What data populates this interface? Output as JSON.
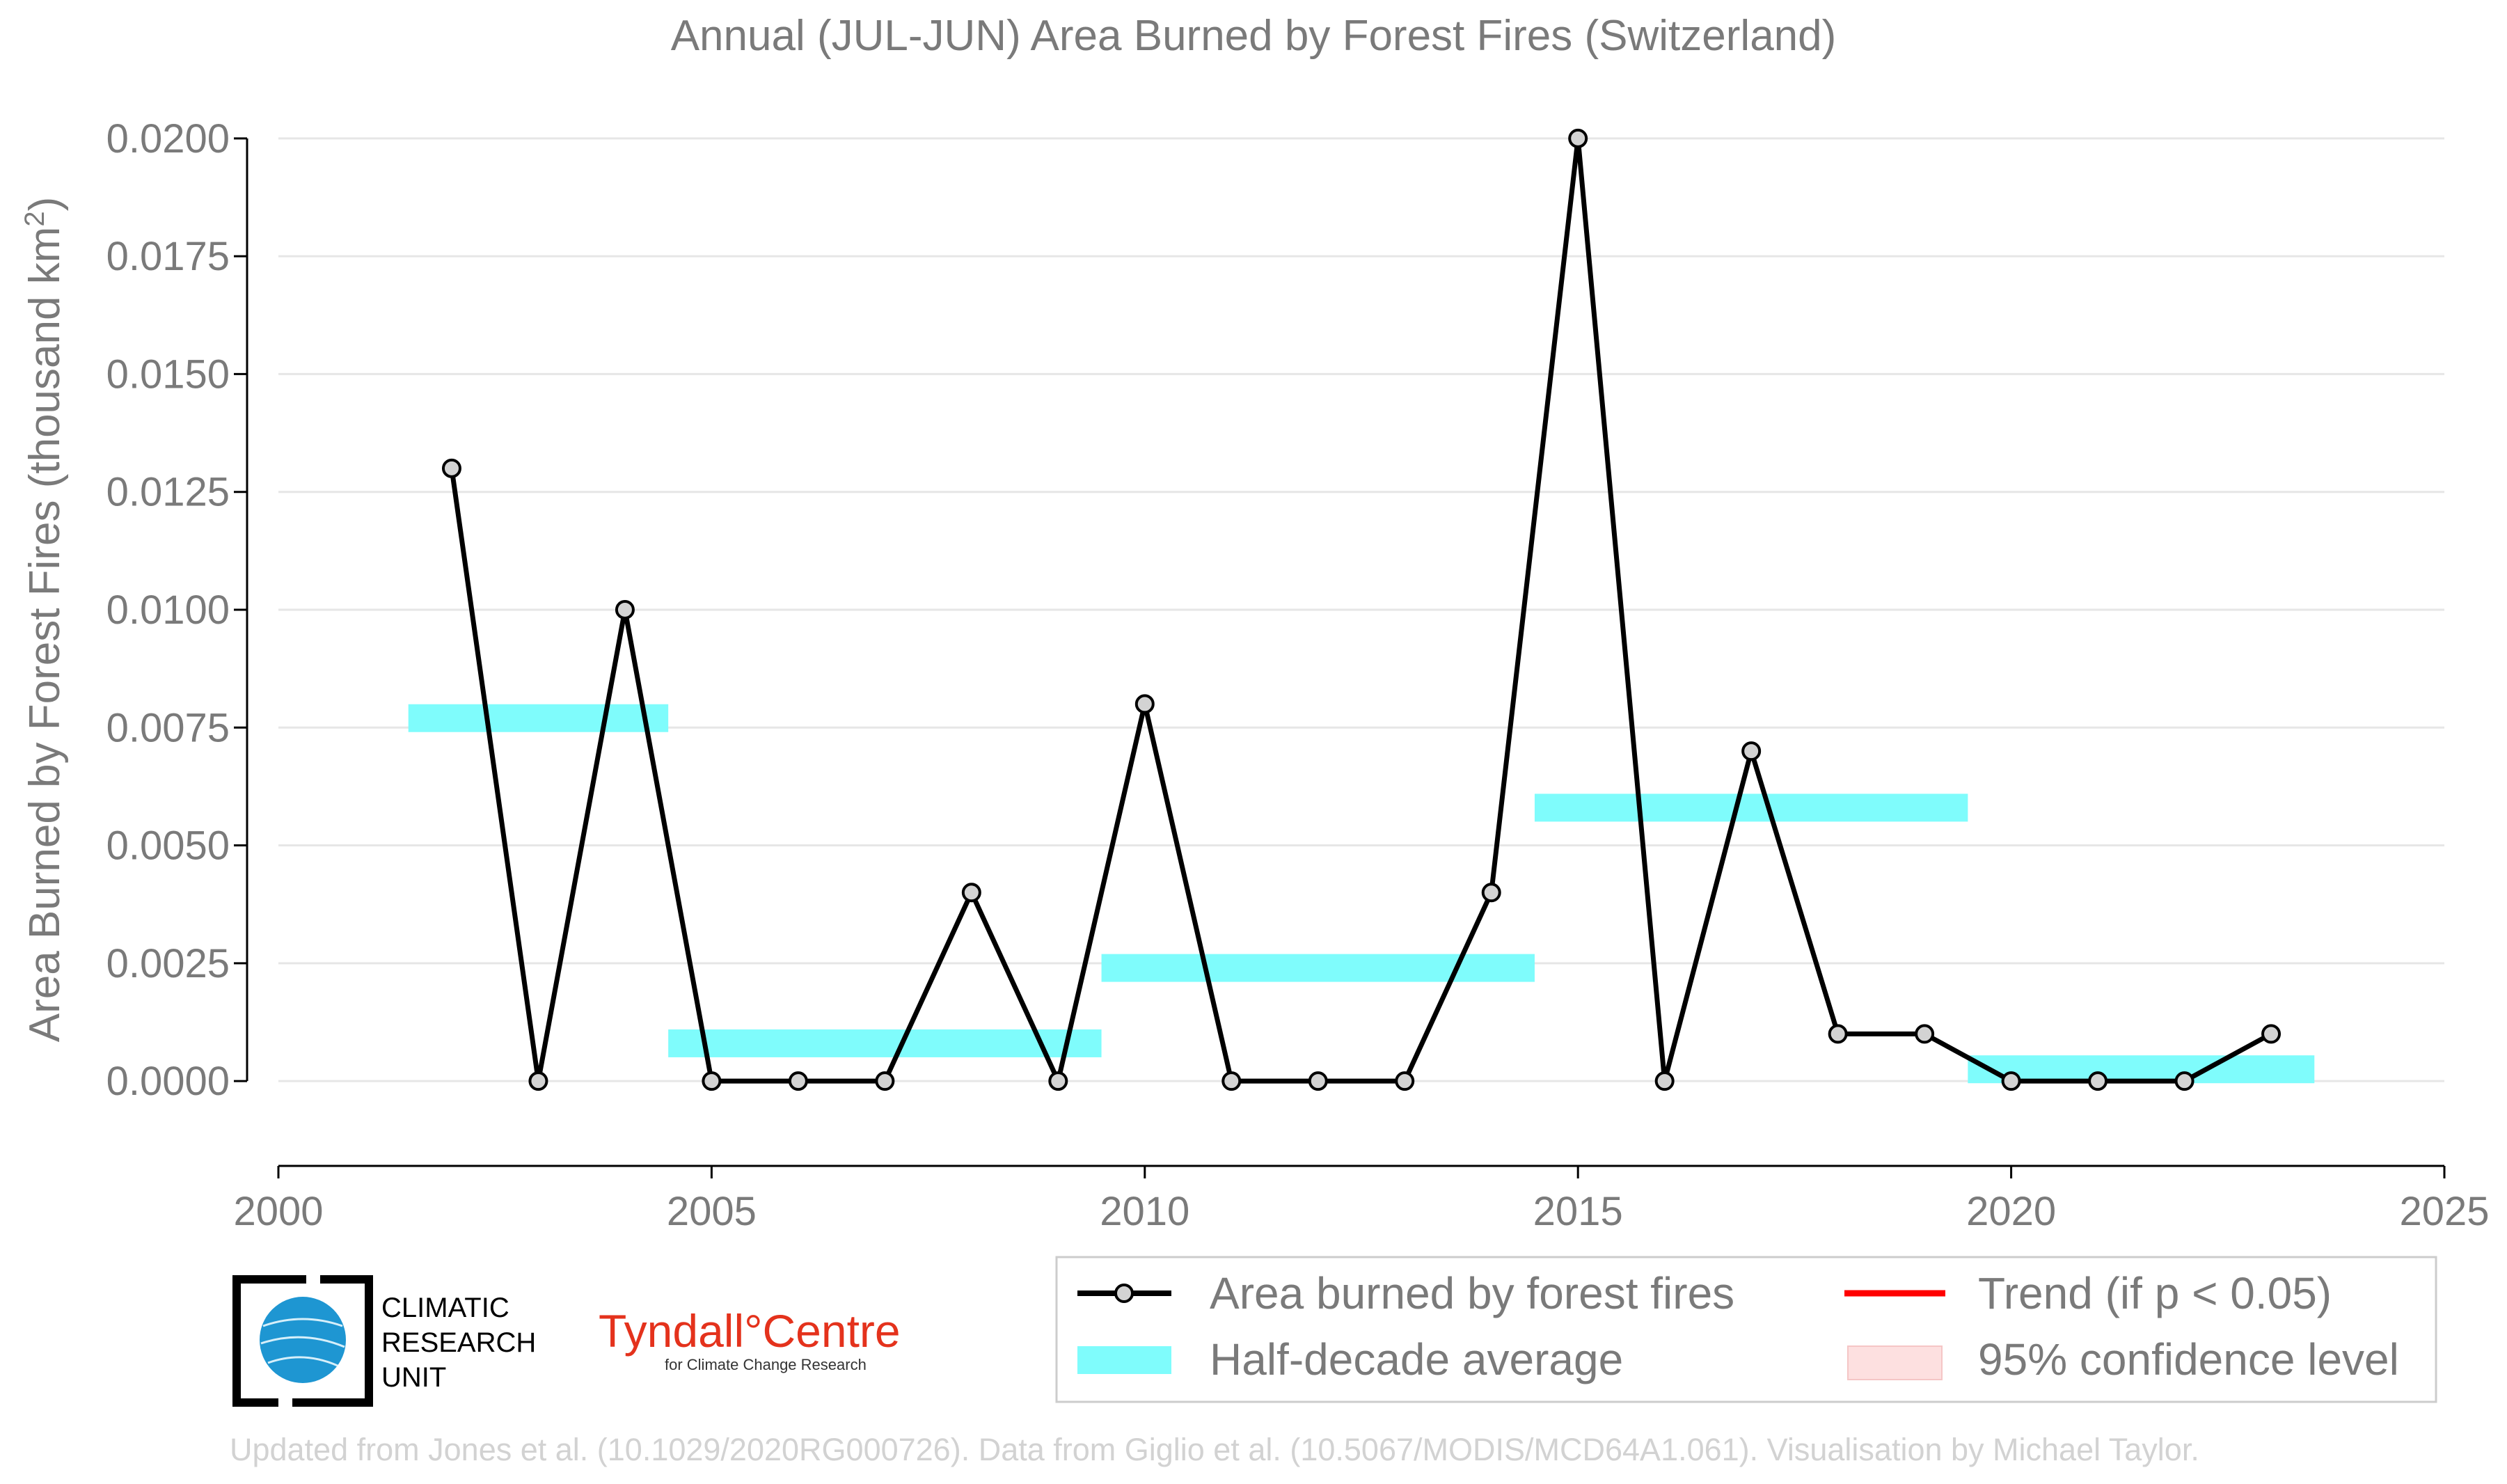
{
  "chart_data": {
    "type": "line",
    "title": "Annual (JUL-JUN) Area Burned by Forest Fires (Switzerland)",
    "ylabel": "Area Burned by Forest Fires (thousand km",
    "ylabel_superscript": "2",
    "ylabel_suffix": ")",
    "xlabel": "",
    "xlim": [
      2000,
      2025
    ],
    "ylim": [
      -0.0018,
      0.0205
    ],
    "x_ticks": [
      2000,
      2005,
      2010,
      2015,
      2020,
      2025
    ],
    "x_tick_labels": [
      "2000",
      "2005",
      "2010",
      "2015",
      "2020",
      "2025"
    ],
    "y_ticks": [
      0,
      0.0025,
      0.005,
      0.0075,
      0.01,
      0.0125,
      0.015,
      0.0175,
      0.02
    ],
    "y_tick_labels": [
      "0.0000",
      "0.0025",
      "0.0050",
      "0.0075",
      "0.0100",
      "0.0125",
      "0.0150",
      "0.0175",
      "0.0200"
    ],
    "grid": true,
    "series": [
      {
        "name": "Area burned by forest fires",
        "color": "#000000",
        "marker_fill": "#d3d3d3",
        "x": [
          2002,
          2003,
          2004,
          2005,
          2006,
          2007,
          2008,
          2009,
          2010,
          2011,
          2012,
          2013,
          2014,
          2015,
          2016,
          2017,
          2018,
          2019,
          2020,
          2021,
          2022,
          2023
        ],
        "y": [
          0.013,
          0.0,
          0.01,
          0.0,
          0.0,
          0.0,
          0.004,
          0.0,
          0.008,
          0.0,
          0.0,
          0.0,
          0.004,
          0.02,
          0.0,
          0.007,
          0.001,
          0.001,
          0.0,
          0.0,
          0.0,
          0.001
        ]
      },
      {
        "name": "Half-decade average",
        "color": "#7ffcfc",
        "segments": [
          {
            "x0": 2001.5,
            "x1": 2004.5,
            "y": 0.0077
          },
          {
            "x0": 2004.5,
            "x1": 2009.5,
            "y": 0.0008
          },
          {
            "x0": 2009.5,
            "x1": 2014.5,
            "y": 0.0024
          },
          {
            "x0": 2014.5,
            "x1": 2019.5,
            "y": 0.0058
          },
          {
            "x0": 2019.5,
            "x1": 2023.5,
            "y": 0.00025
          }
        ]
      }
    ],
    "legend": {
      "placement": "bottom-right",
      "items": [
        {
          "label": "Area burned by forest fires",
          "kind": "line-marker",
          "color": "#000000"
        },
        {
          "label": "Trend (if p < 0.05)",
          "kind": "line",
          "color": "#ff0000"
        },
        {
          "label": "Half-decade average",
          "kind": "band",
          "color": "#7ffcfc"
        },
        {
          "label": "95% confidence level",
          "kind": "band",
          "color": "#fde0e0"
        }
      ]
    }
  },
  "logos": {
    "cru_lines": [
      "CLIMATIC",
      "RESEARCH",
      "UNIT"
    ],
    "tyndall_main": "Tyndall°Centre",
    "tyndall_sub": "for Climate Change Research"
  },
  "credit": "Updated from Jones et al. (10.1029/2020RG000726). Data from Giglio et al. (10.5067/MODIS/MCD64A1.061). Visualisation by Michael Taylor."
}
